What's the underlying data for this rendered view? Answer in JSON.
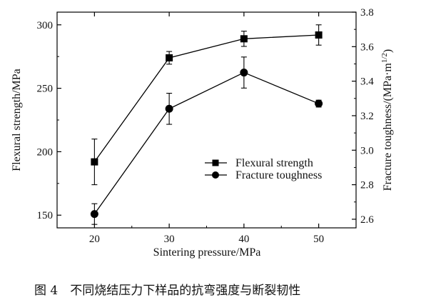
{
  "caption": "图 4　不同烧结压力下样品的抗弯强度与断裂韧性",
  "chart_data": {
    "type": "line",
    "title": "",
    "xlabel": "Sintering pressure/MPa",
    "ylabel": "Flexural strength/MPa",
    "y2label": "Fracture toughness/(MPa·m",
    "y2label_sup": "1/2",
    "y2label_end": ")",
    "x": [
      20,
      30,
      40,
      50
    ],
    "xlim": [
      15,
      55
    ],
    "xticks": [
      "20",
      "30",
      "40",
      "50"
    ],
    "ylim": [
      140,
      310
    ],
    "yticks": [
      "150",
      "200",
      "250",
      "300"
    ],
    "y2lim": [
      2.55,
      3.8
    ],
    "y2ticks": [
      "2.6",
      "2.8",
      "3.0",
      "3.2",
      "3.4",
      "3.6",
      "3.8"
    ],
    "legend_position": "lower-right",
    "series": [
      {
        "name": "Flexural strength",
        "axis": "left",
        "marker": "square",
        "values": [
          192,
          274,
          289,
          292
        ],
        "error": [
          18,
          5,
          6,
          8
        ],
        "color": "#000000"
      },
      {
        "name": "Fracture toughness",
        "axis": "right",
        "marker": "circle",
        "values": [
          2.63,
          3.24,
          3.45,
          3.27
        ],
        "error": [
          0.06,
          0.09,
          0.09,
          0.02
        ],
        "color": "#000000"
      }
    ]
  }
}
